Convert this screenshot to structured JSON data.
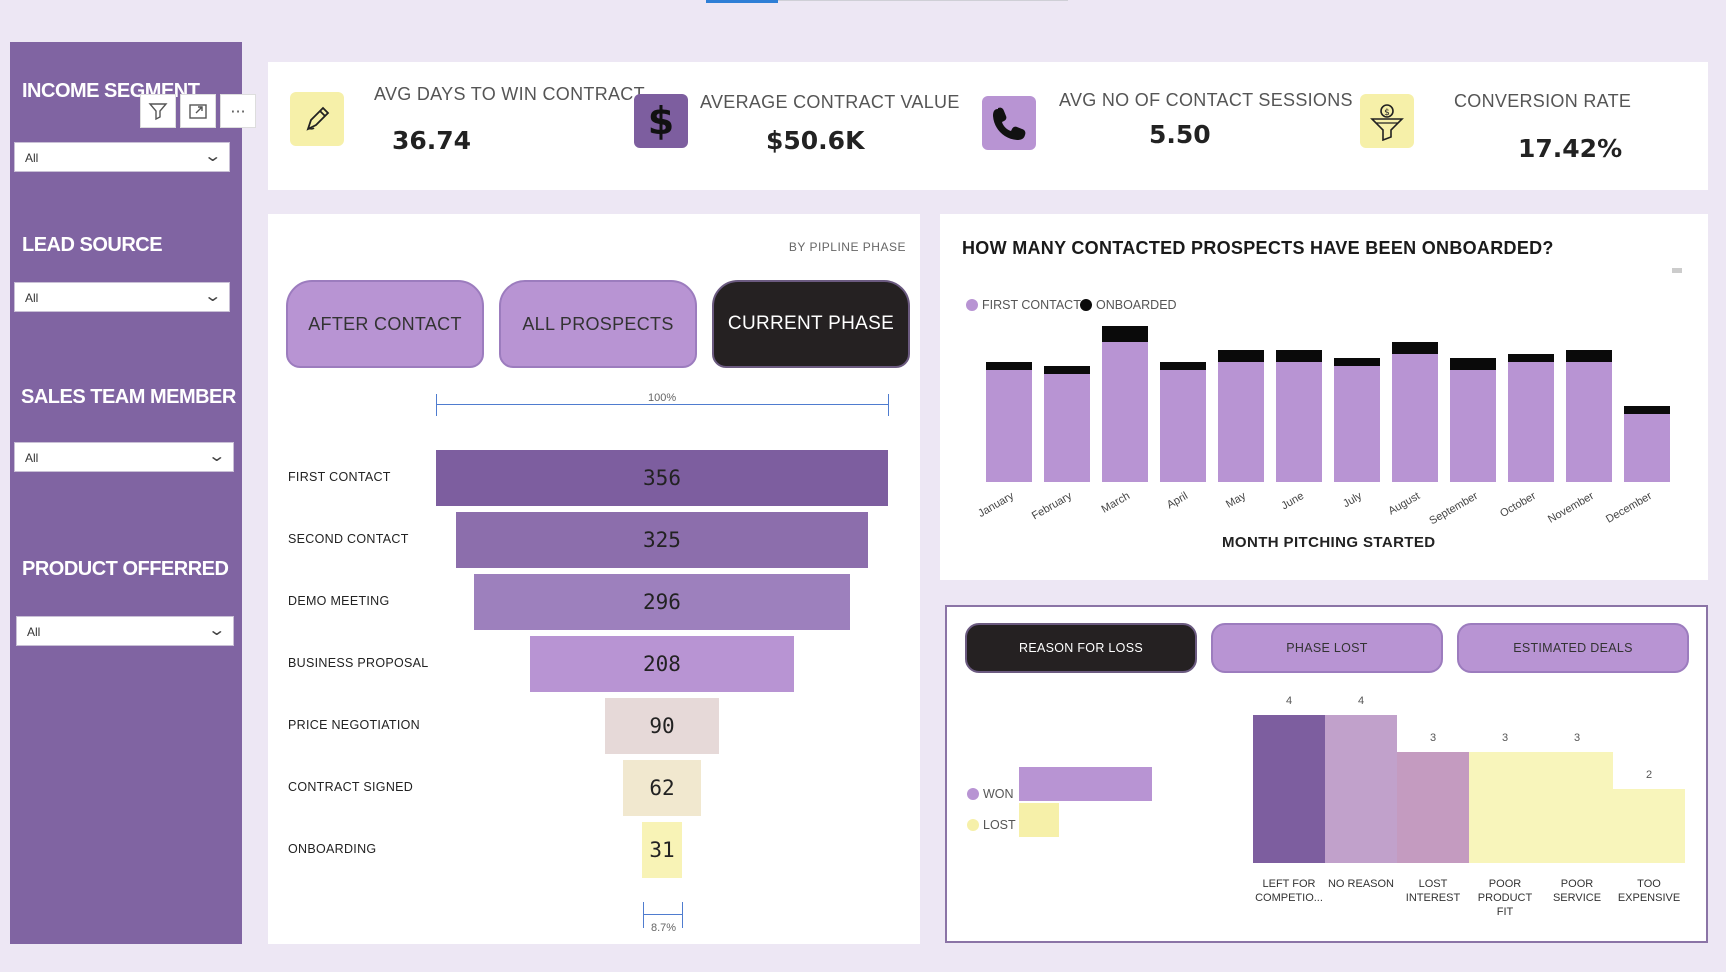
{
  "filters": [
    {
      "title": "INCOME SEGMENT",
      "value": "All"
    },
    {
      "title": "LEAD SOURCE",
      "value": "All"
    },
    {
      "title": "SALES TEAM MEMBER",
      "value": "All"
    },
    {
      "title": "PRODUCT OFFERRED",
      "value": "All"
    }
  ],
  "visual_tools": {
    "filter": "filter-icon",
    "focus": "focus-mode-icon",
    "more": "···"
  },
  "kpis": [
    {
      "label": "AVG DAYS TO WIN CONTRACT",
      "value": "36.74",
      "icon": "pen-icon",
      "icon_bg": "#f6f0a9"
    },
    {
      "label": "AVERAGE CONTRACT VALUE",
      "value": "$50.6K",
      "icon": "dollar-icon",
      "icon_bg": "#7d5e9f"
    },
    {
      "label": "AVG NO OF CONTACT SESSIONS",
      "value": "5.50",
      "icon": "phone-icon",
      "icon_bg": "#b894d3"
    },
    {
      "label": "CONVERSION RATE",
      "value": "17.42%",
      "icon": "funnel-dollar-icon",
      "icon_bg": "#f6f0a9"
    }
  ],
  "funnel": {
    "by_label": "BY  PIPLINE PHASE",
    "buttons": [
      "AFTER CONTACT",
      "ALL PROSPECTS",
      "CURRENT PHASE"
    ],
    "top_pct": "100%",
    "bottom_pct": "8.7%",
    "stages": [
      {
        "label": "FIRST CONTACT",
        "value": 356,
        "color": "#7d5e9f"
      },
      {
        "label": "SECOND CONTACT",
        "value": 325,
        "color": "#8c6eac"
      },
      {
        "label": "DEMO MEETING",
        "value": 296,
        "color": "#9d80bd"
      },
      {
        "label": "BUSINESS PROPOSAL",
        "value": 208,
        "color": "#b894d3"
      },
      {
        "label": "PRICE NEGOTIATION",
        "value": 90,
        "color": "#e6d9d8"
      },
      {
        "label": "CONTRACT SIGNED",
        "value": 62,
        "color": "#f1e8cf"
      },
      {
        "label": "ONBOARDING",
        "value": 31,
        "color": "#f8f3b6"
      }
    ]
  },
  "chart_data": [
    {
      "type": "bar",
      "stacked": true,
      "title": "HOW MANY CONTACTED PROSPECTS HAVE BEEN ONBOARDED?",
      "xlabel": "MONTH PITCHING STARTED",
      "ylabel": "",
      "categories": [
        "January",
        "February",
        "March",
        "April",
        "May",
        "June",
        "July",
        "August",
        "September",
        "October",
        "November",
        "December"
      ],
      "series": [
        {
          "name": "FIRST CONTACT",
          "color": "#b894d3",
          "values": [
            28,
            27,
            35,
            28,
            30,
            30,
            29,
            32,
            28,
            30,
            30,
            17
          ]
        },
        {
          "name": "ONBOARDED",
          "color": "#0a0a0a",
          "values": [
            2,
            2,
            4,
            2,
            3,
            3,
            2,
            3,
            3,
            2,
            3,
            2
          ]
        }
      ],
      "ylim": [
        0,
        40
      ],
      "legend": "top-left"
    },
    {
      "type": "bar",
      "orientation": "horizontal",
      "categories": [
        "WON",
        "LOST"
      ],
      "values": [
        100,
        30
      ],
      "colors": [
        "#b894d3",
        "#f6f0a9"
      ],
      "legend": "left"
    },
    {
      "type": "bar",
      "title": "REASON FOR LOSS",
      "categories": [
        "LEFT FOR COMPETIO...",
        "NO REASON",
        "LOST INTEREST",
        "POOR PRODUCT FIT",
        "POOR SERVICE",
        "TOO EXPENSIVE"
      ],
      "values": [
        4,
        4,
        3,
        3,
        3,
        2
      ],
      "colors": [
        "#7d5e9f",
        "#c1a1cb",
        "#c49bc0",
        "#f8f5bb",
        "#f8f5bb",
        "#f8f5bb"
      ],
      "ylim": [
        0,
        4
      ]
    }
  ],
  "onboard_legend": {
    "first": "FIRST CONTACT",
    "onboarded": "ONBOARDED"
  },
  "loss": {
    "buttons": [
      "REASON FOR LOSS",
      "PHASE LOST",
      "ESTIMATED DEALS"
    ],
    "legend": [
      "WON",
      "LOST"
    ],
    "category_lines": [
      [
        "LEFT FOR",
        "COMPETIO..."
      ],
      [
        "NO REASON"
      ],
      [
        "LOST",
        "INTEREST"
      ],
      [
        "POOR",
        "PRODUCT",
        "FIT"
      ],
      [
        "POOR",
        "SERVICE"
      ],
      [
        "TOO",
        "EXPENSIVE"
      ]
    ]
  }
}
